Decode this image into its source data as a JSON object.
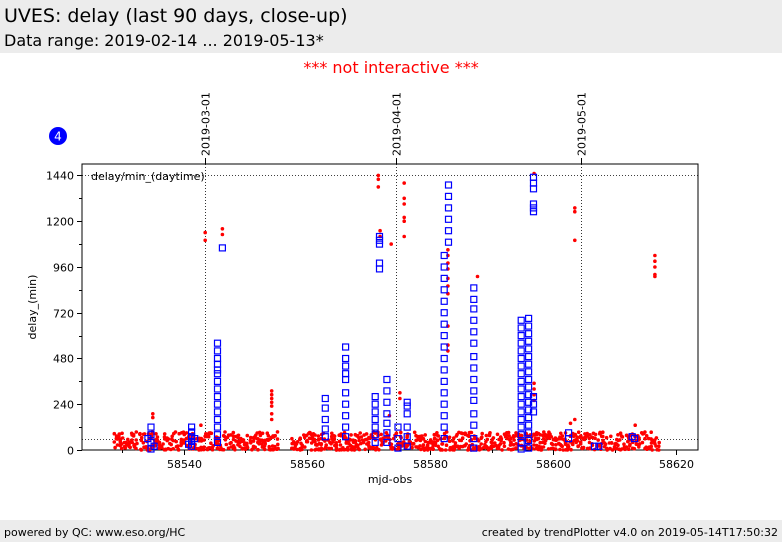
{
  "header": {
    "title": "UVES: delay (last 90 days, close-up)",
    "subtitle": "Data range: 2019-02-14 ... 2019-05-13*"
  },
  "notice": "*** not interactive ***",
  "footer": {
    "left": "powered by QC: www.eso.org/HC",
    "right": "created by trendPlotter v4.0 on 2019-05-14T17:50:32"
  },
  "colors": {
    "red": "#ff0000",
    "blue": "#0000ff",
    "header_bg": "#ececec"
  },
  "chart_data": {
    "type": "scatter",
    "xlabel": "mjd-obs",
    "ylabel": "delay_(min)",
    "plot_label": "delay/min_(daytime)",
    "panel_number": "4",
    "xlim": [
      8523.5,
      8623.5
    ],
    "ylim": [
      0,
      1500
    ],
    "x_ticks": [
      8540,
      8560,
      8580,
      8600,
      8620
    ],
    "x_tick_labels": [
      "58540",
      "58560",
      "58580",
      "58600",
      "58620"
    ],
    "y_ticks": [
      0,
      240,
      480,
      720,
      960,
      1200,
      1440
    ],
    "y_tick_labels": [
      "0",
      "240",
      "480",
      "720",
      "960",
      "1200",
      "1440"
    ],
    "reference_lines": {
      "y_values": [
        60,
        1440
      ]
    },
    "date_markers": [
      {
        "x": 8543.5,
        "label": "2019-03-01"
      },
      {
        "x": 8574.5,
        "label": "2019-04-01"
      },
      {
        "x": 8604.5,
        "label": "2019-05-01"
      }
    ],
    "series": [
      {
        "marker": "dot",
        "color": "#ff0000",
        "baseline_x_start": 8528.8,
        "baseline_x_end": 8617.2,
        "baseline_gaps": [
          [
            8555.5,
            8557.5
          ]
        ],
        "baseline_y_range": [
          0,
          95
        ],
        "points": [
          [
            8535,
            190
          ],
          [
            8535,
            170
          ],
          [
            8543.5,
            1140
          ],
          [
            8543.5,
            1100
          ],
          [
            8546.3,
            1160
          ],
          [
            8546.3,
            1130
          ],
          [
            8542.8,
            130
          ],
          [
            8554.3,
            310
          ],
          [
            8554.3,
            290
          ],
          [
            8554.3,
            270
          ],
          [
            8554.3,
            250
          ],
          [
            8554.3,
            230
          ],
          [
            8554.3,
            190
          ],
          [
            8554.3,
            160
          ],
          [
            8571.6,
            1440
          ],
          [
            8571.6,
            1420
          ],
          [
            8571.6,
            1380
          ],
          [
            8571.9,
            1150
          ],
          [
            8571.9,
            1120
          ],
          [
            8573.4,
            180
          ],
          [
            8573.7,
            1080
          ],
          [
            8575.8,
            1400
          ],
          [
            8575.8,
            1320
          ],
          [
            8575.8,
            1290
          ],
          [
            8575.8,
            1220
          ],
          [
            8575.8,
            1200
          ],
          [
            8575.8,
            1120
          ],
          [
            8575.1,
            300
          ],
          [
            8575.1,
            270
          ],
          [
            8582.9,
            1050
          ],
          [
            8582.9,
            1020
          ],
          [
            8582.9,
            980
          ],
          [
            8582.9,
            950
          ],
          [
            8582.9,
            900
          ],
          [
            8582.9,
            860
          ],
          [
            8582.9,
            820
          ],
          [
            8582.9,
            650
          ],
          [
            8582.9,
            550
          ],
          [
            8582.9,
            520
          ],
          [
            8587.7,
            910
          ],
          [
            8596.9,
            1450
          ],
          [
            8596.9,
            350
          ],
          [
            8596.9,
            320
          ],
          [
            8596.9,
            290
          ],
          [
            8596.9,
            260
          ],
          [
            8603.5,
            1270
          ],
          [
            8603.5,
            1250
          ],
          [
            8603.5,
            1100
          ],
          [
            8603.5,
            160
          ],
          [
            8602.8,
            140
          ],
          [
            8613.3,
            130
          ],
          [
            8616.5,
            1020
          ],
          [
            8616.5,
            990
          ],
          [
            8616.5,
            960
          ],
          [
            8616.5,
            920
          ],
          [
            8616.5,
            910
          ]
        ]
      },
      {
        "marker": "open-square",
        "color": "#0000ff",
        "points": [
          [
            8534.7,
            120
          ],
          [
            8534.7,
            80
          ],
          [
            8534.7,
            40
          ],
          [
            8534.2,
            60
          ],
          [
            8535.2,
            20
          ],
          [
            8534.7,
            5
          ],
          [
            8541.3,
            120
          ],
          [
            8541.3,
            95
          ],
          [
            8541.3,
            70
          ],
          [
            8541.3,
            45
          ],
          [
            8541.3,
            20
          ],
          [
            8541.8,
            60
          ],
          [
            8540.8,
            30
          ],
          [
            8546.3,
            1060
          ],
          [
            8545.5,
            560
          ],
          [
            8545.5,
            520
          ],
          [
            8545.5,
            480
          ],
          [
            8545.5,
            450
          ],
          [
            8545.5,
            420
          ],
          [
            8545.5,
            400
          ],
          [
            8545.5,
            360
          ],
          [
            8545.5,
            320
          ],
          [
            8545.5,
            280
          ],
          [
            8545.5,
            240
          ],
          [
            8545.5,
            200
          ],
          [
            8545.5,
            160
          ],
          [
            8545.5,
            120
          ],
          [
            8545.5,
            80
          ],
          [
            8545.5,
            40
          ],
          [
            8563.0,
            270
          ],
          [
            8563.0,
            220
          ],
          [
            8563.0,
            160
          ],
          [
            8563.0,
            110
          ],
          [
            8563.0,
            70
          ],
          [
            8566.3,
            540
          ],
          [
            8566.3,
            480
          ],
          [
            8566.3,
            440
          ],
          [
            8566.3,
            400
          ],
          [
            8566.3,
            370
          ],
          [
            8566.3,
            300
          ],
          [
            8566.3,
            240
          ],
          [
            8566.3,
            180
          ],
          [
            8566.3,
            120
          ],
          [
            8566.3,
            70
          ],
          [
            8571.1,
            280
          ],
          [
            8571.1,
            240
          ],
          [
            8571.1,
            200
          ],
          [
            8571.1,
            160
          ],
          [
            8571.1,
            120
          ],
          [
            8571.1,
            80
          ],
          [
            8571.1,
            40
          ],
          [
            8571.8,
            1120
          ],
          [
            8571.8,
            1100
          ],
          [
            8571.8,
            1080
          ],
          [
            8571.8,
            980
          ],
          [
            8571.8,
            950
          ],
          [
            8573.0,
            370
          ],
          [
            8573.0,
            310
          ],
          [
            8573.0,
            250
          ],
          [
            8573.0,
            190
          ],
          [
            8573.0,
            140
          ],
          [
            8573.0,
            90
          ],
          [
            8573.0,
            40
          ],
          [
            8574.8,
            120
          ],
          [
            8574.8,
            60
          ],
          [
            8574.8,
            10
          ],
          [
            8576.3,
            250
          ],
          [
            8576.3,
            230
          ],
          [
            8576.3,
            190
          ],
          [
            8576.3,
            120
          ],
          [
            8576.3,
            70
          ],
          [
            8576.3,
            20
          ],
          [
            8582.3,
            1020
          ],
          [
            8582.3,
            960
          ],
          [
            8582.3,
            900
          ],
          [
            8582.3,
            840
          ],
          [
            8582.3,
            780
          ],
          [
            8582.3,
            720
          ],
          [
            8582.3,
            660
          ],
          [
            8582.3,
            600
          ],
          [
            8582.3,
            540
          ],
          [
            8582.3,
            480
          ],
          [
            8582.3,
            420
          ],
          [
            8582.3,
            360
          ],
          [
            8582.3,
            300
          ],
          [
            8582.3,
            240
          ],
          [
            8582.3,
            180
          ],
          [
            8582.3,
            120
          ],
          [
            8582.3,
            60
          ],
          [
            8583.0,
            1390
          ],
          [
            8583.0,
            1330
          ],
          [
            8583.0,
            1270
          ],
          [
            8583.0,
            1210
          ],
          [
            8583.0,
            1150
          ],
          [
            8583.0,
            1090
          ],
          [
            8587.1,
            10
          ],
          [
            8587.1,
            60
          ],
          [
            8587.1,
            130
          ],
          [
            8587.1,
            190
          ],
          [
            8587.1,
            260
          ],
          [
            8587.1,
            310
          ],
          [
            8587.1,
            370
          ],
          [
            8587.1,
            430
          ],
          [
            8587.1,
            490
          ],
          [
            8587.1,
            560
          ],
          [
            8587.1,
            620
          ],
          [
            8587.1,
            680
          ],
          [
            8587.1,
            740
          ],
          [
            8587.1,
            790
          ],
          [
            8587.1,
            850
          ],
          [
            8594.8,
            680
          ],
          [
            8594.8,
            640
          ],
          [
            8594.8,
            600
          ],
          [
            8594.8,
            560
          ],
          [
            8594.8,
            520
          ],
          [
            8594.8,
            480
          ],
          [
            8594.8,
            440
          ],
          [
            8594.8,
            400
          ],
          [
            8594.8,
            360
          ],
          [
            8594.8,
            320
          ],
          [
            8594.8,
            280
          ],
          [
            8594.8,
            240
          ],
          [
            8594.8,
            200
          ],
          [
            8594.8,
            160
          ],
          [
            8594.8,
            120
          ],
          [
            8594.8,
            80
          ],
          [
            8594.8,
            40
          ],
          [
            8594.8,
            5
          ],
          [
            8596.0,
            690
          ],
          [
            8596.0,
            650
          ],
          [
            8596.0,
            610
          ],
          [
            8596.0,
            570
          ],
          [
            8596.0,
            530
          ],
          [
            8596.0,
            490
          ],
          [
            8596.0,
            450
          ],
          [
            8596.0,
            410
          ],
          [
            8596.0,
            370
          ],
          [
            8596.0,
            330
          ],
          [
            8596.0,
            290
          ],
          [
            8596.0,
            250
          ],
          [
            8596.0,
            210
          ],
          [
            8596.0,
            170
          ],
          [
            8596.0,
            130
          ],
          [
            8596.0,
            90
          ],
          [
            8596.0,
            50
          ],
          [
            8596.0,
            10
          ],
          [
            8596.8,
            1430
          ],
          [
            8596.8,
            1400
          ],
          [
            8596.8,
            1370
          ],
          [
            8596.8,
            1290
          ],
          [
            8596.8,
            1270
          ],
          [
            8596.8,
            1250
          ],
          [
            8596.8,
            280
          ],
          [
            8596.8,
            240
          ],
          [
            8596.8,
            200
          ],
          [
            8602.5,
            90
          ],
          [
            8602.5,
            60
          ],
          [
            8606.7,
            20
          ],
          [
            8607.4,
            20
          ],
          [
            8612.8,
            70
          ],
          [
            8613.2,
            60
          ]
        ]
      }
    ]
  }
}
